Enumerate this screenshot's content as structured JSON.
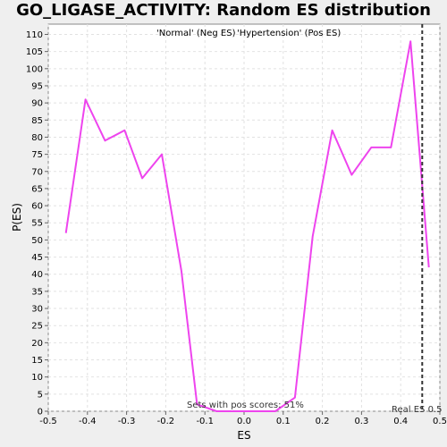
{
  "chart_data": {
    "type": "line",
    "title": "GO_LIGASE_ACTIVITY: Random ES distribution",
    "legend": {
      "neg_label": "'Normal' (Neg ES)",
      "pos_label": "'Hypertension' (Pos ES)",
      "placement": "top-center",
      "neg_color": "#3333ff",
      "pos_color": "#ff3333"
    },
    "xlabel": "ES",
    "ylabel": "P(ES)",
    "xlim": [
      -0.5,
      0.5
    ],
    "ylim": [
      0,
      113
    ],
    "x_ticks": [
      "-0.5",
      "-0.4",
      "-0.3",
      "-0.2",
      "-0.1",
      "0.0",
      "0.1",
      "0.2",
      "0.3",
      "0.4",
      "0.5"
    ],
    "y_ticks": [
      "0",
      "5",
      "10",
      "15",
      "20",
      "25",
      "30",
      "35",
      "40",
      "45",
      "50",
      "55",
      "60",
      "65",
      "70",
      "75",
      "80",
      "85",
      "90",
      "95",
      "100",
      "105",
      "110"
    ],
    "grid": true,
    "series": [
      {
        "color": "#ee44ee",
        "x": [
          -0.455,
          -0.405,
          -0.355,
          -0.305,
          -0.26,
          -0.21,
          -0.16,
          -0.12,
          -0.07,
          -0.02,
          0.03,
          0.08,
          0.13,
          0.175,
          0.225,
          0.275,
          0.325,
          0.375,
          0.425,
          0.472
        ],
        "y": [
          52,
          91,
          79,
          82,
          68,
          75,
          41,
          2,
          0,
          0,
          0,
          0,
          4,
          51,
          82,
          69,
          77,
          77,
          108,
          42
        ]
      }
    ],
    "real_es": {
      "x": 0.455,
      "label": "Real ES 0.5"
    },
    "annotation": "Sets with pos scores: 51%"
  }
}
